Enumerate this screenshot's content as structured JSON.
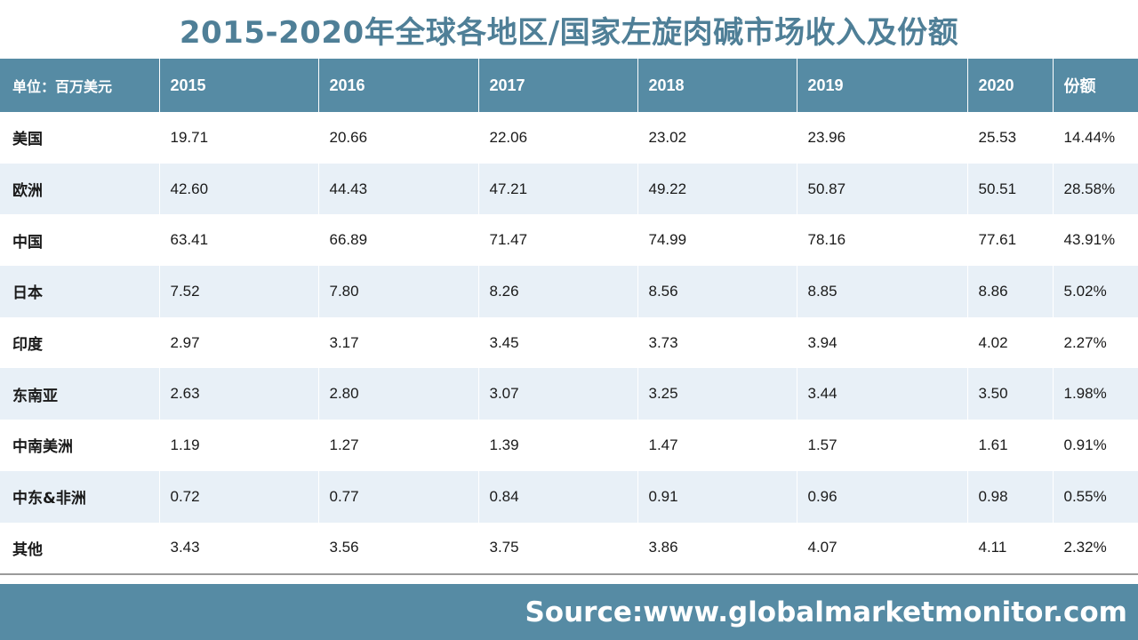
{
  "title": "2015-2020年全球各地区/国家左旋肉碱市场收入及份额",
  "source": "Source:www.globalmarketmonitor.com",
  "chart_data": {
    "type": "table",
    "columns": [
      "单位：百万美元",
      "2015",
      "2016",
      "2017",
      "2018",
      "2019",
      "2020",
      "份额"
    ],
    "rows": [
      {
        "region": "美国",
        "values": [
          "19.71",
          "20.66",
          "22.06",
          "23.02",
          "23.96",
          "25.53"
        ],
        "share": "14.44%"
      },
      {
        "region": "欧洲",
        "values": [
          "42.60",
          "44.43",
          "47.21",
          "49.22",
          "50.87",
          "50.51"
        ],
        "share": "28.58%"
      },
      {
        "region": "中国",
        "values": [
          "63.41",
          "66.89",
          "71.47",
          "74.99",
          "78.16",
          "77.61"
        ],
        "share": "43.91%"
      },
      {
        "region": "日本",
        "values": [
          "7.52",
          "7.80",
          "8.26",
          "8.56",
          "8.85",
          "8.86"
        ],
        "share": "5.02%"
      },
      {
        "region": "印度",
        "values": [
          "2.97",
          "3.17",
          "3.45",
          "3.73",
          "3.94",
          "4.02"
        ],
        "share": "2.27%"
      },
      {
        "region": "东南亚",
        "values": [
          "2.63",
          "2.80",
          "3.07",
          "3.25",
          "3.44",
          "3.50"
        ],
        "share": "1.98%"
      },
      {
        "region": "中南美洲",
        "values": [
          "1.19",
          "1.27",
          "1.39",
          "1.47",
          "1.57",
          "1.61"
        ],
        "share": "0.91%"
      },
      {
        "region": "中东&非洲",
        "values": [
          "0.72",
          "0.77",
          "0.84",
          "0.91",
          "0.96",
          "0.98"
        ],
        "share": "0.55%"
      },
      {
        "region": "其他",
        "values": [
          "3.43",
          "3.56",
          "3.75",
          "3.86",
          "4.07",
          "4.11"
        ],
        "share": "2.32%"
      }
    ]
  },
  "colors": {
    "header_bg": "#568ba4",
    "title_text": "#4f7f97",
    "stripe_bg": "#e8f0f7"
  }
}
